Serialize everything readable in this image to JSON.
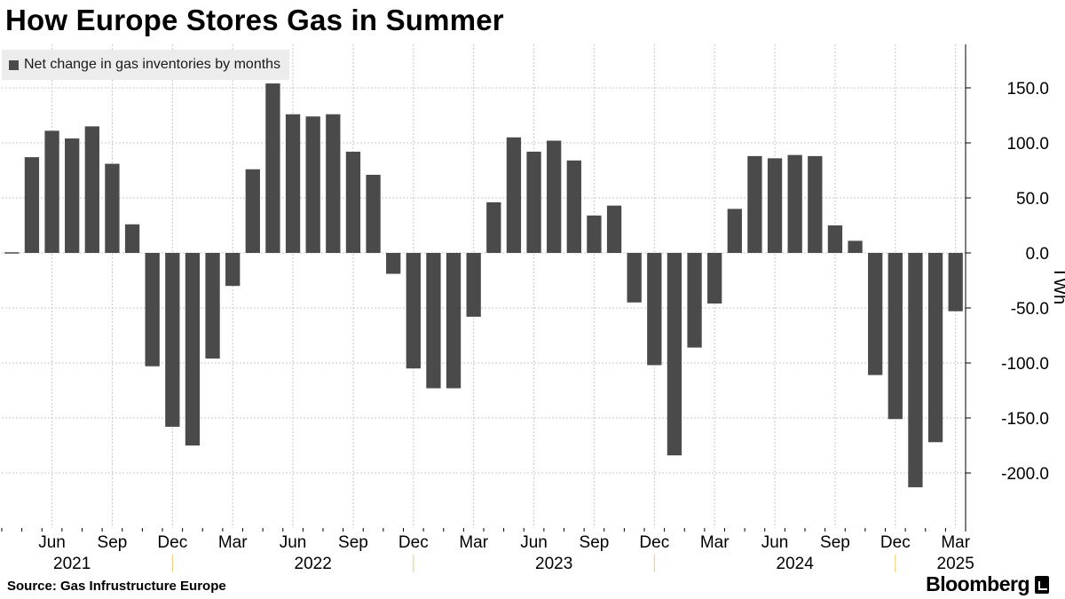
{
  "title": "How Europe Stores Gas in Summer",
  "legend_label": "Net change in gas inventories by months",
  "source": "Source: Gas Infrustructure Europe",
  "brand": "Bloomberg",
  "brand_icon": "bloomberg-terminal-icon",
  "colors": {
    "bar": "#4a4a4a",
    "grid": "#c8c8c8",
    "legend_bg": "#ececec"
  },
  "chart_data": {
    "type": "bar",
    "ylabel": "TWh",
    "ylim": [
      -250,
      190
    ],
    "yticks": [
      150,
      100,
      50,
      0,
      -50,
      -100,
      -150,
      -200
    ],
    "ytick_labels": [
      "150.0",
      "100.0",
      "50.0",
      "0.0",
      "-50.0",
      "-100.0",
      "-150.0",
      "-200.0"
    ],
    "y_axis_position": "right",
    "grid": true,
    "legend_position": "top-left",
    "categories": [
      "Apr 2021",
      "May 2021",
      "Jun 2021",
      "Jul 2021",
      "Aug 2021",
      "Sep 2021",
      "Oct 2021",
      "Nov 2021",
      "Dec 2021",
      "Jan 2022",
      "Feb 2022",
      "Mar 2022",
      "Apr 2022",
      "May 2022",
      "Jun 2022",
      "Jul 2022",
      "Aug 2022",
      "Sep 2022",
      "Oct 2022",
      "Nov 2022",
      "Dec 2022",
      "Jan 2023",
      "Feb 2023",
      "Mar 2023",
      "Apr 2023",
      "May 2023",
      "Jun 2023",
      "Jul 2023",
      "Aug 2023",
      "Sep 2023",
      "Oct 2023",
      "Nov 2023",
      "Dec 2023",
      "Jan 2024",
      "Feb 2024",
      "Mar 2024",
      "Apr 2024",
      "May 2024",
      "Jun 2024",
      "Jul 2024",
      "Aug 2024",
      "Sep 2024",
      "Oct 2024",
      "Nov 2024",
      "Dec 2024",
      "Jan 2025",
      "Feb 2025",
      "Mar 2025"
    ],
    "series": [
      {
        "values": [
          0,
          87,
          111,
          104,
          115,
          81,
          26,
          -103,
          -158,
          -175,
          -96,
          -30,
          76,
          154,
          126,
          124,
          126,
          92,
          71,
          -19,
          -105,
          -123,
          -123,
          -58,
          46,
          105,
          92,
          102,
          84,
          34,
          43,
          -45,
          -102,
          -184,
          -86,
          -46,
          40,
          88,
          86,
          89,
          88,
          25,
          11,
          -111,
          -151,
          -213,
          -172,
          -53
        ]
      }
    ],
    "month_ticks": [
      {
        "label": "Jun",
        "index": 2
      },
      {
        "label": "Sep",
        "index": 5
      },
      {
        "label": "Dec",
        "index": 8
      },
      {
        "label": "Mar",
        "index": 11
      },
      {
        "label": "Jun",
        "index": 14
      },
      {
        "label": "Sep",
        "index": 17
      },
      {
        "label": "Dec",
        "index": 20
      },
      {
        "label": "Mar",
        "index": 23
      },
      {
        "label": "Jun",
        "index": 26
      },
      {
        "label": "Sep",
        "index": 29
      },
      {
        "label": "Dec",
        "index": 32
      },
      {
        "label": "Mar",
        "index": 35
      },
      {
        "label": "Jun",
        "index": 38
      },
      {
        "label": "Sep",
        "index": 41
      },
      {
        "label": "Dec",
        "index": 44
      },
      {
        "label": "Mar",
        "index": 47
      }
    ],
    "year_labels": [
      {
        "label": "2021",
        "index": 3
      },
      {
        "label": "2022",
        "index": 15
      },
      {
        "label": "2023",
        "index": 27
      },
      {
        "label": "2024",
        "index": 39
      },
      {
        "label": "2025",
        "index": 47
      }
    ],
    "year_separators": [
      8.5,
      20.5,
      32.5,
      44.5
    ]
  }
}
